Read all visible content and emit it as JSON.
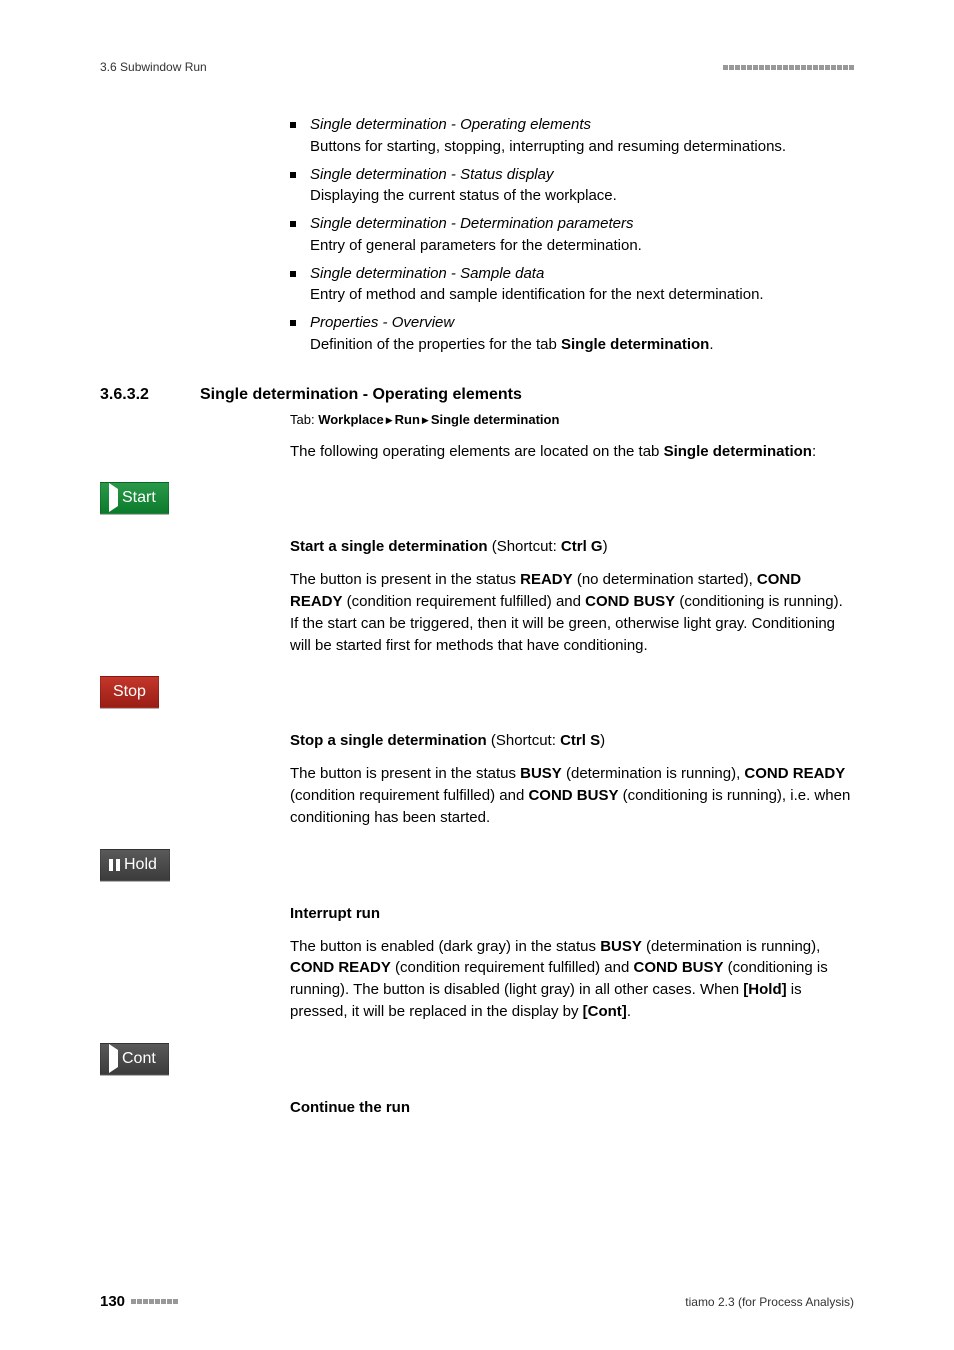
{
  "header": {
    "left": "3.6 Subwindow Run"
  },
  "bullets": [
    {
      "title": "Single determination - Operating elements",
      "desc": "Buttons for starting, stopping, interrupting and resuming determinations."
    },
    {
      "title": "Single determination - Status display",
      "desc": "Displaying the current status of the workplace."
    },
    {
      "title": "Single determination - Determination parameters",
      "desc": "Entry of general parameters for the determination."
    },
    {
      "title": "Single determination - Sample data",
      "desc": "Entry of method and sample identification for the next determination."
    },
    {
      "title": "Properties - Overview",
      "desc_pre": "Definition of the properties for the tab ",
      "desc_bold": "Single determination",
      "desc_post": "."
    }
  ],
  "section": {
    "num": "3.6.3.2",
    "title": "Single determination - Operating elements",
    "tab_prefix": "Tab: ",
    "tab_path": [
      "Workplace",
      "Run",
      "Single determination"
    ],
    "intro_pre": "The following operating elements are located on the tab ",
    "intro_bold": "Single determination",
    "intro_post": ":"
  },
  "buttons": {
    "start": "Start",
    "stop": "Stop",
    "hold": "Hold",
    "cont": "Cont"
  },
  "colors": {
    "start_bg": "#0c7a2a",
    "stop_bg": "#9a1e16",
    "hold_bg": "#3c3c3c",
    "cont_bg": "#3c3c3c"
  },
  "start_block": {
    "heading_pre": "Start a single determination ",
    "heading_mid": "(Shortcut: ",
    "heading_key": "Ctrl G",
    "heading_post": ")",
    "p1": "The button is present in the status ",
    "b1": "READY",
    "p2": " (no determination started), ",
    "b2": "COND READY",
    "p3": " (condition requirement fulfilled) and ",
    "b3": "COND BUSY",
    "p4": " (conditioning is running). If the start can be triggered, then it will be green, otherwise light gray. Conditioning will be started first for methods that have conditioning."
  },
  "stop_block": {
    "heading_pre": "Stop a single determination ",
    "heading_mid": "(Shortcut: ",
    "heading_key": "Ctrl S",
    "heading_post": ")",
    "p1": "The button is present in the status ",
    "b1": "BUSY",
    "p2": " (determination is running), ",
    "b2": "COND READY",
    "p3": " (condition requirement fulfilled) and ",
    "b3": "COND BUSY",
    "p4": " (conditioning is running), i.e. when conditioning has been started."
  },
  "hold_block": {
    "heading": "Interrupt run",
    "p1": "The button is enabled (dark gray) in the status ",
    "b1": "BUSY",
    "p2": " (determination is running), ",
    "b2": "COND READY",
    "p3": " (condition requirement fulfilled) and ",
    "b3": "COND BUSY",
    "p4": " (conditioning is running). The button is disabled (light gray) in all other cases. When ",
    "b4": "[Hold]",
    "p5": " is pressed, it will be replaced in the display by ",
    "b5": "[Cont]",
    "p6": "."
  },
  "cont_block": {
    "heading": "Continue the run"
  },
  "footer": {
    "page": "130",
    "right": "tiamo 2.3 (for Process Analysis)"
  }
}
